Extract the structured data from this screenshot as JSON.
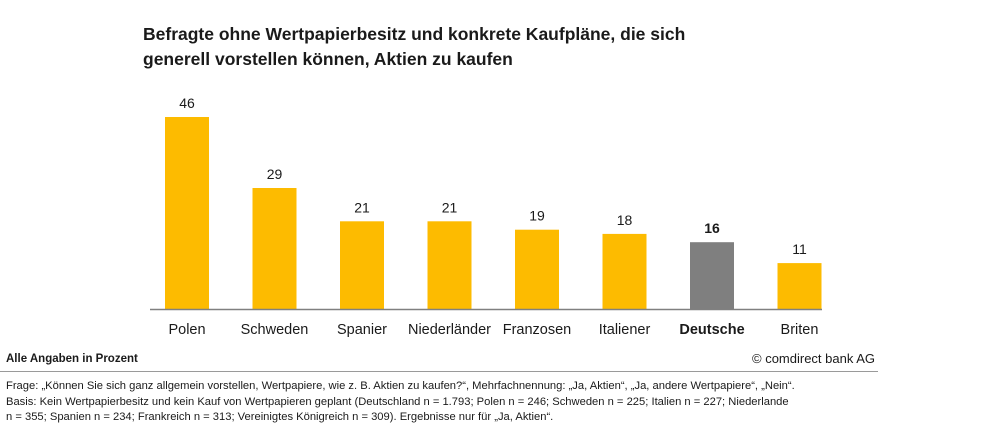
{
  "title_lines": [
    "Befragte ohne Wertpapierbesitz und konkrete Kaufpläne, die sich",
    "generell vorstellen können, Aktien zu kaufen"
  ],
  "chart_data": {
    "type": "bar",
    "categories": [
      "Polen",
      "Schweden",
      "Spanier",
      "Niederländer",
      "Franzosen",
      "Italiener",
      "Deutsche",
      "Briten"
    ],
    "values": [
      46,
      29,
      21,
      21,
      19,
      18,
      16,
      11
    ],
    "highlight_category": "Deutsche",
    "ylim": [
      0,
      46
    ],
    "grid": false,
    "data_labels": true,
    "colors": {
      "bar": "#FDBB00",
      "highlight": "#7F7F7F",
      "axis": "#808080"
    }
  },
  "footer": {
    "note": "Alle Angaben in Prozent",
    "copyright": "© comdirect bank AG",
    "lines": [
      "Frage: „Können Sie sich ganz allgemein vorstellen, Wertpapiere, wie z. B. Aktien zu kaufen?“, Mehrfachnennung: „Ja, Aktien“, „Ja, andere Wertpapiere“, „Nein“.",
      "Basis: Kein Wertpapierbesitz und kein Kauf von Wertpapieren geplant (Deutschland n = 1.793; Polen n = 246; Schweden n = 225; Italien n = 227; Niederlande",
      "n = 355; Spanien n = 234; Frankreich n = 313; Vereinigtes Königreich n = 309). Ergebnisse nur für „Ja, Aktien“."
    ]
  }
}
